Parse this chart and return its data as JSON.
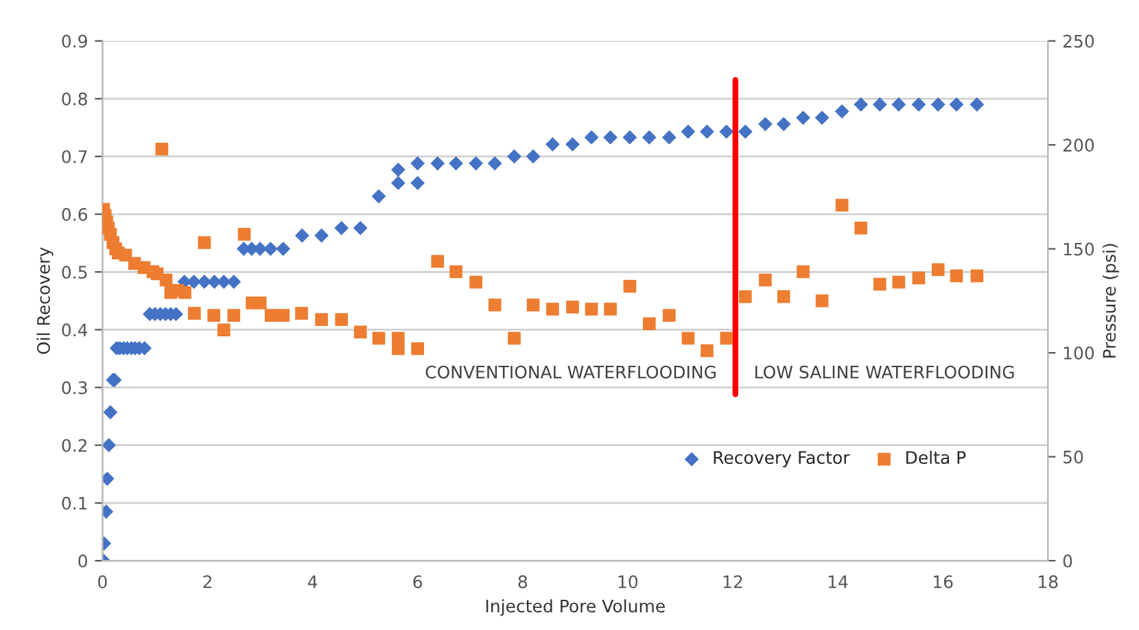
{
  "chart_data": {
    "type": "scatter",
    "xlabel": "Injected Pore Volume",
    "ylabel": "Oil Recovery",
    "y2label": "Pressure (psi)",
    "xlim": [
      0,
      18
    ],
    "xticks": [
      0,
      2,
      4,
      6,
      8,
      10,
      12,
      14,
      16,
      18
    ],
    "ylim": [
      0,
      0.9
    ],
    "yticks": [
      0,
      0.1,
      0.2,
      0.3,
      0.4,
      0.5,
      0.6,
      0.7,
      0.8,
      0.9
    ],
    "y2lim": [
      0,
      250
    ],
    "y2ticks": [
      0,
      50,
      100,
      150,
      200,
      250
    ],
    "grid": "y",
    "legend": "bottom right",
    "series": [
      {
        "name": "Recovery Factor",
        "color": "#4472c4",
        "marker": "diamond",
        "x": [
          0.02,
          0.03,
          0.07,
          0.09,
          0.12,
          0.15,
          0.2,
          0.23,
          0.27,
          0.33,
          0.4,
          0.47,
          0.55,
          0.62,
          0.7,
          0.8,
          0.9,
          1.0,
          1.1,
          1.2,
          1.3,
          1.4,
          1.56,
          1.74,
          1.94,
          2.13,
          2.31,
          2.5,
          2.69,
          2.84,
          3.0,
          3.2,
          3.44,
          3.8,
          4.17,
          4.55,
          4.91,
          5.26,
          5.63,
          5.63,
          6.0,
          6.0,
          6.38,
          6.73,
          7.11,
          7.47,
          7.84,
          8.2,
          8.57,
          8.95,
          9.31,
          9.67,
          10.04,
          10.41,
          10.79,
          11.15,
          11.51,
          11.88,
          12.24,
          12.62,
          12.97,
          13.34,
          13.7,
          14.08,
          14.44,
          14.8,
          15.16,
          15.54,
          15.91,
          16.26,
          16.65
        ],
        "values": [
          0,
          0.03,
          0.085,
          0.142,
          0.2,
          0.257,
          0.313,
          0.313,
          0.368,
          0.368,
          0.368,
          0.368,
          0.368,
          0.368,
          0.368,
          0.368,
          0.427,
          0.427,
          0.427,
          0.427,
          0.427,
          0.427,
          0.483,
          0.483,
          0.483,
          0.483,
          0.483,
          0.483,
          0.54,
          0.54,
          0.54,
          0.54,
          0.54,
          0.563,
          0.563,
          0.576,
          0.576,
          0.631,
          0.654,
          0.677,
          0.654,
          0.688,
          0.688,
          0.688,
          0.688,
          0.688,
          0.7,
          0.7,
          0.721,
          0.721,
          0.733,
          0.733,
          0.733,
          0.733,
          0.733,
          0.743,
          0.743,
          0.743,
          0.743,
          0.756,
          0.756,
          0.767,
          0.767,
          0.778,
          0.79,
          0.79,
          0.79,
          0.79,
          0.79,
          0.79,
          0.79
        ]
      },
      {
        "name": "Delta P",
        "color": "#ed7d31",
        "marker": "square",
        "axis": "y2",
        "x": [
          0.02,
          0.05,
          0.08,
          0.11,
          0.15,
          0.2,
          0.25,
          0.3,
          0.44,
          0.61,
          0.79,
          0.96,
          1.04,
          1.13,
          1.21,
          1.3,
          1.43,
          1.57,
          1.75,
          1.94,
          2.12,
          2.31,
          2.5,
          2.7,
          2.85,
          3.0,
          3.21,
          3.44,
          3.79,
          4.17,
          4.55,
          4.91,
          5.26,
          5.63,
          5.63,
          6.0,
          6.38,
          6.73,
          7.11,
          7.47,
          7.84,
          8.2,
          8.57,
          8.95,
          9.31,
          9.67,
          10.04,
          10.41,
          10.79,
          11.15,
          11.51,
          11.88,
          12.24,
          12.62,
          12.97,
          13.34,
          13.7,
          14.08,
          14.44,
          14.8,
          15.16,
          15.54,
          15.91,
          16.26,
          16.65
        ],
        "values": [
          169,
          166,
          163,
          160,
          157,
          153,
          150,
          148,
          147,
          143,
          141,
          139,
          138,
          198,
          135,
          129,
          130,
          129,
          119,
          153,
          118,
          111,
          118,
          157,
          124,
          124,
          118,
          118,
          119,
          116,
          116,
          110,
          107,
          107,
          102,
          102,
          144,
          139,
          134,
          123,
          107,
          123,
          121,
          122,
          121,
          121,
          132,
          114,
          118,
          107,
          101,
          107,
          127,
          135,
          127,
          139,
          125,
          171,
          160,
          133,
          134,
          136,
          140,
          137,
          137
        ]
      }
    ],
    "ref_lines": [
      {
        "axis": "x",
        "value": 12.05,
        "color": "#ff0000"
      }
    ],
    "annotations": [
      "CONVENTIONAL WATERFLOODING",
      "LOW SALINE WATERFLOODING"
    ]
  }
}
